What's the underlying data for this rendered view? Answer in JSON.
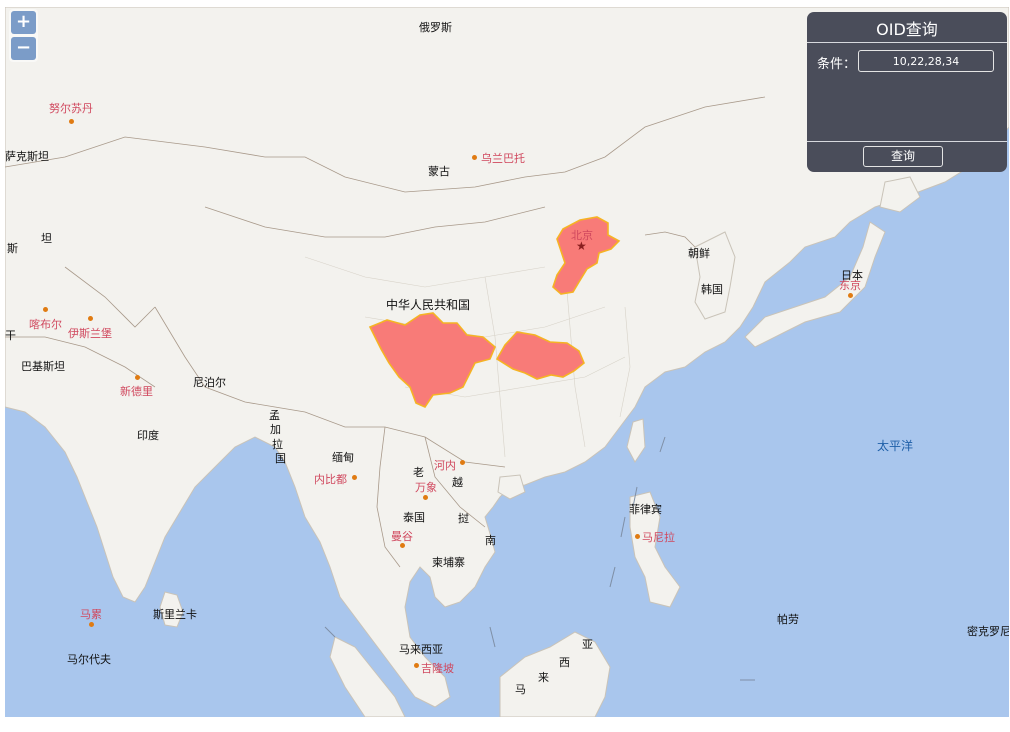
{
  "zoom": {
    "in_label": "+",
    "out_label": "−"
  },
  "panel": {
    "title": "OID查询",
    "condition_label": "条件：",
    "condition_value": "10,22,28,34",
    "query_button": "查询"
  },
  "labels": {
    "russia": "俄罗斯",
    "mongolia": "蒙古",
    "ulaanbaatar": "乌兰巴托",
    "nursultan": "努尔苏丹",
    "kazakhstan": "萨克斯坦",
    "china": "中华人民共和国",
    "beijing": "北京",
    "north_korea": "朝鲜",
    "south_korea": "韩国",
    "japan": "日本",
    "tokyo": "东京",
    "kabul": "喀布尔",
    "islamabad": "伊斯兰堡",
    "pakistan": "巴基斯坦",
    "new_delhi": "新德里",
    "nepal": "尼泊尔",
    "india": "印度",
    "bangladesh_1": "孟",
    "bangladesh_2": "加",
    "bangladesh_3": "拉",
    "bangladesh_4": "国",
    "myanmar": "缅甸",
    "naypyidaw": "内比都",
    "laos": "老",
    "vientiane": "万象",
    "hanoi": "河内",
    "vietnam_1": "越",
    "vietnam_2": "挝",
    "vietnam_3": "南",
    "thailand": "泰国",
    "bangkok": "曼谷",
    "cambodia": "柬埔寨",
    "philippines": "菲律宾",
    "manila": "马尼拉",
    "pacific": "太平洋",
    "sri_lanka": "斯里兰卡",
    "male": "马累",
    "maldives": "马尔代夫",
    "malaysia": "马来西亚",
    "kuala_lumpur": "吉隆坡",
    "palau": "帕劳",
    "micronesia": "密克罗尼",
    "malay_1": "马",
    "malay_2": "来",
    "malay_3": "西",
    "malay_4": "亚",
    "edge_si": "斯",
    "edge_tan": "坦",
    "edge_gan": "干"
  },
  "colors": {
    "ocean": "#a9c6ed",
    "land": "#f3f2ee",
    "highlight_fill": "#f87b78",
    "highlight_stroke": "#f5b324",
    "panel_bg": "#4a4d5a"
  },
  "highlighted_regions": [
    "北京-天津-河北",
    "四川",
    "湖北-重庆"
  ]
}
